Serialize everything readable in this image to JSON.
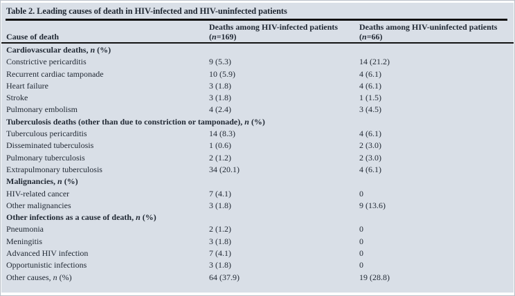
{
  "table": {
    "title": "Table 2. Leading causes of death in HIV-infected and HIV-uninfected patients",
    "header": {
      "col1": "Cause of death",
      "col2_line1": "Deaths among HIV-infected patients",
      "col2_line2": "(n=169)",
      "col3_line1": "Deaths among HIV-uninfected patients",
      "col3_line2": "(n=66)"
    },
    "rows": [
      {
        "type": "section",
        "label": "Cardiovascular deaths, n (%)",
        "infected": "",
        "uninfected": ""
      },
      {
        "type": "data",
        "label": "Constrictive pericarditis",
        "infected": "9 (5.3)",
        "uninfected": "14 (21.2)"
      },
      {
        "type": "data",
        "label": "Recurrent cardiac tamponade",
        "infected": "10 (5.9)",
        "uninfected": "4 (6.1)"
      },
      {
        "type": "data",
        "label": "Heart failure",
        "infected": "3 (1.8)",
        "uninfected": "4 (6.1)"
      },
      {
        "type": "data",
        "label": "Stroke",
        "infected": "3 (1.8)",
        "uninfected": "1 (1.5)"
      },
      {
        "type": "data",
        "label": "Pulmonary embolism",
        "infected": "4 (2.4)",
        "uninfected": "3 (4.5)"
      },
      {
        "type": "section",
        "label": "Tuberculosis deaths (other than due to constriction or tamponade), n (%)",
        "infected": "",
        "uninfected": ""
      },
      {
        "type": "data",
        "label": "Tuberculous pericarditis",
        "infected": "14 (8.3)",
        "uninfected": "4 (6.1)"
      },
      {
        "type": "data",
        "label": "Disseminated tuberculosis",
        "infected": "1 (0.6)",
        "uninfected": "2 (3.0)"
      },
      {
        "type": "data",
        "label": "Pulmonary tuberculosis",
        "infected": "2 (1.2)",
        "uninfected": "2 (3.0)"
      },
      {
        "type": "data",
        "label": "Extrapulmonary tuberculosis",
        "infected": "34 (20.1)",
        "uninfected": "4 (6.1)"
      },
      {
        "type": "section",
        "label": "Malignancies, n (%)",
        "infected": "",
        "uninfected": ""
      },
      {
        "type": "data",
        "label": "HIV-related cancer",
        "infected": "7 (4.1)",
        "uninfected": "0"
      },
      {
        "type": "data",
        "label": "Other malignancies",
        "infected": "3 (1.8)",
        "uninfected": "9 (13.6)"
      },
      {
        "type": "section",
        "label": "Other infections as a cause of death, n (%)",
        "infected": "",
        "uninfected": ""
      },
      {
        "type": "data",
        "label": "Pneumonia",
        "infected": "2 (1.2)",
        "uninfected": "0"
      },
      {
        "type": "data",
        "label": "Meningitis",
        "infected": "3 (1.8)",
        "uninfected": "0"
      },
      {
        "type": "data",
        "label": "Advanced HIV infection",
        "infected": "7 (4.1)",
        "uninfected": "0"
      },
      {
        "type": "data",
        "label": "Opportunistic infections",
        "infected": "3 (1.8)",
        "uninfected": "0"
      },
      {
        "type": "data",
        "label": "Other causes, n (%)",
        "infected": "64 (37.9)",
        "uninfected": "19 (28.8)"
      }
    ]
  },
  "colors": {
    "panel_bg": "#d9dfe7",
    "text_color": "#222a35",
    "rule_color": "#121212"
  }
}
